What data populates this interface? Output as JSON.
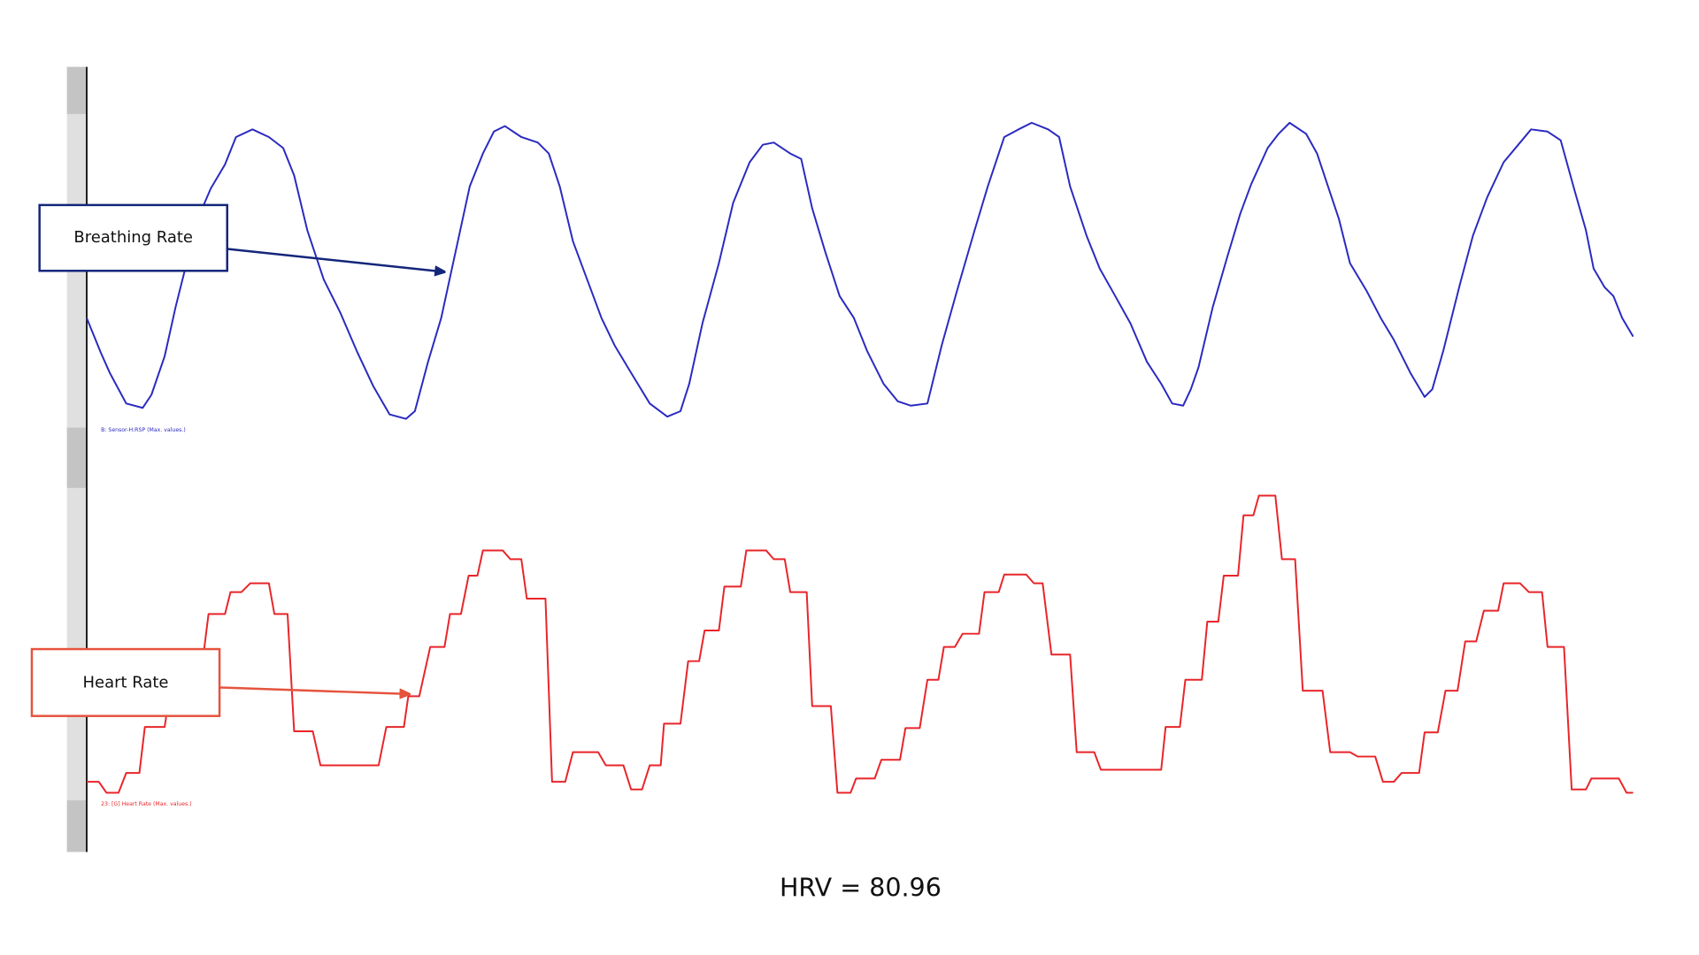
{
  "annotations": {
    "breathing": "Breathing Rate",
    "heart": "Heart Rate"
  },
  "signals": {
    "respiration_label": "B: Sensor-H:RSP (Max. values.)",
    "heart_rate_label": "23: [G] Heart Rate (Max. values.)"
  },
  "footer": {
    "hrv": "HRV = 80.96"
  }
}
